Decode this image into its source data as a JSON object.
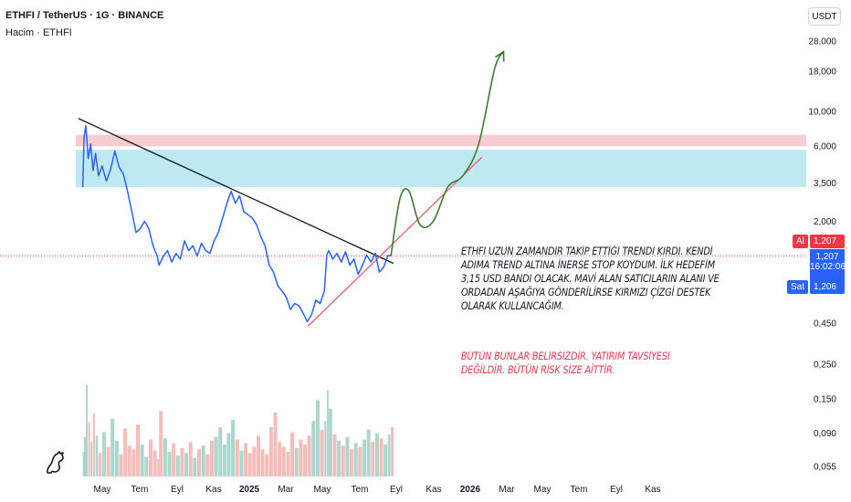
{
  "header": {
    "title": "ETHFI / TetherUS · 1G · BINANCE",
    "volume_label": "Hacim · ETHFI",
    "currency": "USDT"
  },
  "price_tags": {
    "buy_label": "Al",
    "buy_price": "1,207",
    "last_price": "1,207",
    "countdown": "16:02:06",
    "sell_label": "Sat",
    "sell_price": "1,206"
  },
  "annotations": {
    "analysis_text": "ETHFI UZUN ZAMANDIR TAKİP ETTİĞİ TRENDİ KIRDI. KENDİ ADIMA TREND ALTINA İNERSE STOP KOYDUM. İLK HEDEFİM 3,15 USD BANDI OLACAK. MAVİ ALAN SATICILARIN ALANI VE ORDADAN AŞAĞIYA GÖNDERİLİRSE KIRMIZI ÇİZGİ DESTEK OLARAK KULLANCAĞIM.",
    "disclaimer_text": "BÜTÜN BUNLAR BELİRSİZDİR. YATIRIM TAVSİYESİ DEĞİLDİR. BÜTÜN RİSK SİZE AİTTİR."
  },
  "colors": {
    "price_line": "#2962ff",
    "trendline": "#131722",
    "support_line": "#e5606c",
    "projection": "#3a7d2c",
    "resistance_zone": "#f8cdd1",
    "seller_zone": "#bfe9f2",
    "volume_up": "#9fcfc6",
    "volume_down": "#f2b1ae",
    "tag_red": "#f23645",
    "tag_blue": "#2962ff"
  },
  "chart_data": {
    "type": "line",
    "scale": "log",
    "y_axis_ticks": [
      "28,000",
      "18,000",
      "10,000",
      "6,000",
      "3,500",
      "2,000",
      "0,450",
      "0,250",
      "0,150",
      "0,090",
      "0,055"
    ],
    "x_axis_ticks": [
      "May",
      "Tem",
      "Eyl",
      "Kas",
      "2025",
      "Mar",
      "May",
      "Tem",
      "Eyl",
      "Kas",
      "2026",
      "Mar",
      "May",
      "Tem",
      "Eyl",
      "Kas"
    ],
    "series": [
      {
        "x": [
          "2024-04-01",
          "2024-04-03",
          "2024-04-06",
          "2024-04-10",
          "2024-04-14",
          "2024-04-18",
          "2024-04-22",
          "2024-04-27",
          "2024-05-03",
          "2024-05-10",
          "2024-05-17",
          "2024-05-24",
          "2024-05-31",
          "2024-06-07",
          "2024-06-14",
          "2024-06-21",
          "2024-06-28",
          "2024-07-05",
          "2024-07-12",
          "2024-07-19",
          "2024-07-26",
          "2024-08-02",
          "2024-08-05",
          "2024-08-12",
          "2024-08-19",
          "2024-08-26",
          "2024-09-02",
          "2024-09-09",
          "2024-09-16",
          "2024-09-23",
          "2024-09-30",
          "2024-10-07",
          "2024-10-14",
          "2024-10-21",
          "2024-10-28",
          "2024-11-04",
          "2024-11-11",
          "2024-11-18",
          "2024-11-25",
          "2024-12-02",
          "2024-12-09",
          "2024-12-16",
          "2024-12-23",
          "2024-12-30",
          "2025-01-06",
          "2025-01-13",
          "2025-01-20",
          "2025-01-27",
          "2025-02-03",
          "2025-02-10",
          "2025-02-17",
          "2025-02-24",
          "2025-03-03",
          "2025-03-10",
          "2025-03-17",
          "2025-03-24",
          "2025-03-31",
          "2025-04-07",
          "2025-04-14",
          "2025-04-21",
          "2025-04-28",
          "2025-05-05",
          "2025-05-09",
          "2025-05-12",
          "2025-05-19",
          "2025-05-26",
          "2025-06-02",
          "2025-06-09",
          "2025-06-16",
          "2025-06-23",
          "2025-06-30",
          "2025-07-07",
          "2025-07-14",
          "2025-07-21",
          "2025-07-28",
          "2025-08-04",
          "2025-08-11",
          "2025-08-18",
          "2025-08-23"
        ],
        "values": [
          3.3,
          6.8,
          8.1,
          5.0,
          6.2,
          4.2,
          5.4,
          3.9,
          4.5,
          3.6,
          4.3,
          5.6,
          4.4,
          4.0,
          3.1,
          2.3,
          1.7,
          1.8,
          2.0,
          1.8,
          1.4,
          1.2,
          1.05,
          1.2,
          1.3,
          1.1,
          1.25,
          1.15,
          1.5,
          1.3,
          1.4,
          1.2,
          1.45,
          1.3,
          1.25,
          1.5,
          1.7,
          2.1,
          2.6,
          3.1,
          2.6,
          2.9,
          2.3,
          2.2,
          2.1,
          1.9,
          1.6,
          1.4,
          1.05,
          0.95,
          0.78,
          0.72,
          0.66,
          0.55,
          0.6,
          0.58,
          0.52,
          0.46,
          0.51,
          0.63,
          0.6,
          0.72,
          1.22,
          1.3,
          1.15,
          1.25,
          1.1,
          1.28,
          1.05,
          1.15,
          0.92,
          1.05,
          1.22,
          1.1,
          1.25,
          0.95,
          1.02,
          1.21,
          1.207
        ]
      }
    ],
    "volume": [
      0.2,
      0.32,
      0.74,
      0.44,
      0.28,
      0.51,
      0.33,
      0.19,
      0.36,
      0.24,
      0.47,
      0.29,
      0.18,
      0.39,
      0.25,
      0.22,
      0.42,
      0.26,
      0.16,
      0.3,
      0.21,
      0.14,
      0.53,
      0.31,
      0.2,
      0.27,
      0.17,
      0.23,
      0.19,
      0.28,
      0.15,
      0.22,
      0.25,
      0.18,
      0.29,
      0.32,
      0.4,
      0.26,
      0.35,
      0.46,
      0.3,
      0.21,
      0.27,
      0.19,
      0.24,
      0.33,
      0.22,
      0.18,
      0.4,
      0.52,
      0.28,
      0.24,
      0.2,
      0.36,
      0.23,
      0.3,
      0.26,
      0.33,
      0.45,
      0.62,
      0.38,
      0.45,
      0.7,
      0.55,
      0.34,
      0.29,
      0.25,
      0.32,
      0.22,
      0.27,
      0.24,
      0.3,
      0.38,
      0.28,
      0.35,
      0.31,
      0.26,
      0.34,
      0.4
    ],
    "zones": [
      {
        "name": "resistance",
        "from": 6.0,
        "to": 7.1
      },
      {
        "name": "sellers",
        "from": 3.3,
        "to": 5.7
      }
    ],
    "trendlines": [
      {
        "name": "downtrend",
        "from": {
          "x": "2024-03-25",
          "y": 9.0
        },
        "to": {
          "x": "2025-08-27",
          "y": 1.08
        }
      },
      {
        "name": "support",
        "from": {
          "x": "2025-04-08",
          "y": 0.43
        },
        "to": {
          "x": "2026-01-20",
          "y": 5.1
        }
      }
    ],
    "projection": {
      "x": [
        "2025-08-23",
        "2025-09-07",
        "2025-09-22",
        "2025-10-10",
        "2025-11-01",
        "2025-11-25",
        "2025-12-20",
        "2026-01-15",
        "2026-02-10",
        "2026-02-25"
      ],
      "y": [
        1.207,
        2.8,
        3.1,
        1.9,
        2.0,
        3.3,
        3.9,
        6.2,
        18.5,
        24.0
      ]
    },
    "price_line_value": 1.207
  }
}
